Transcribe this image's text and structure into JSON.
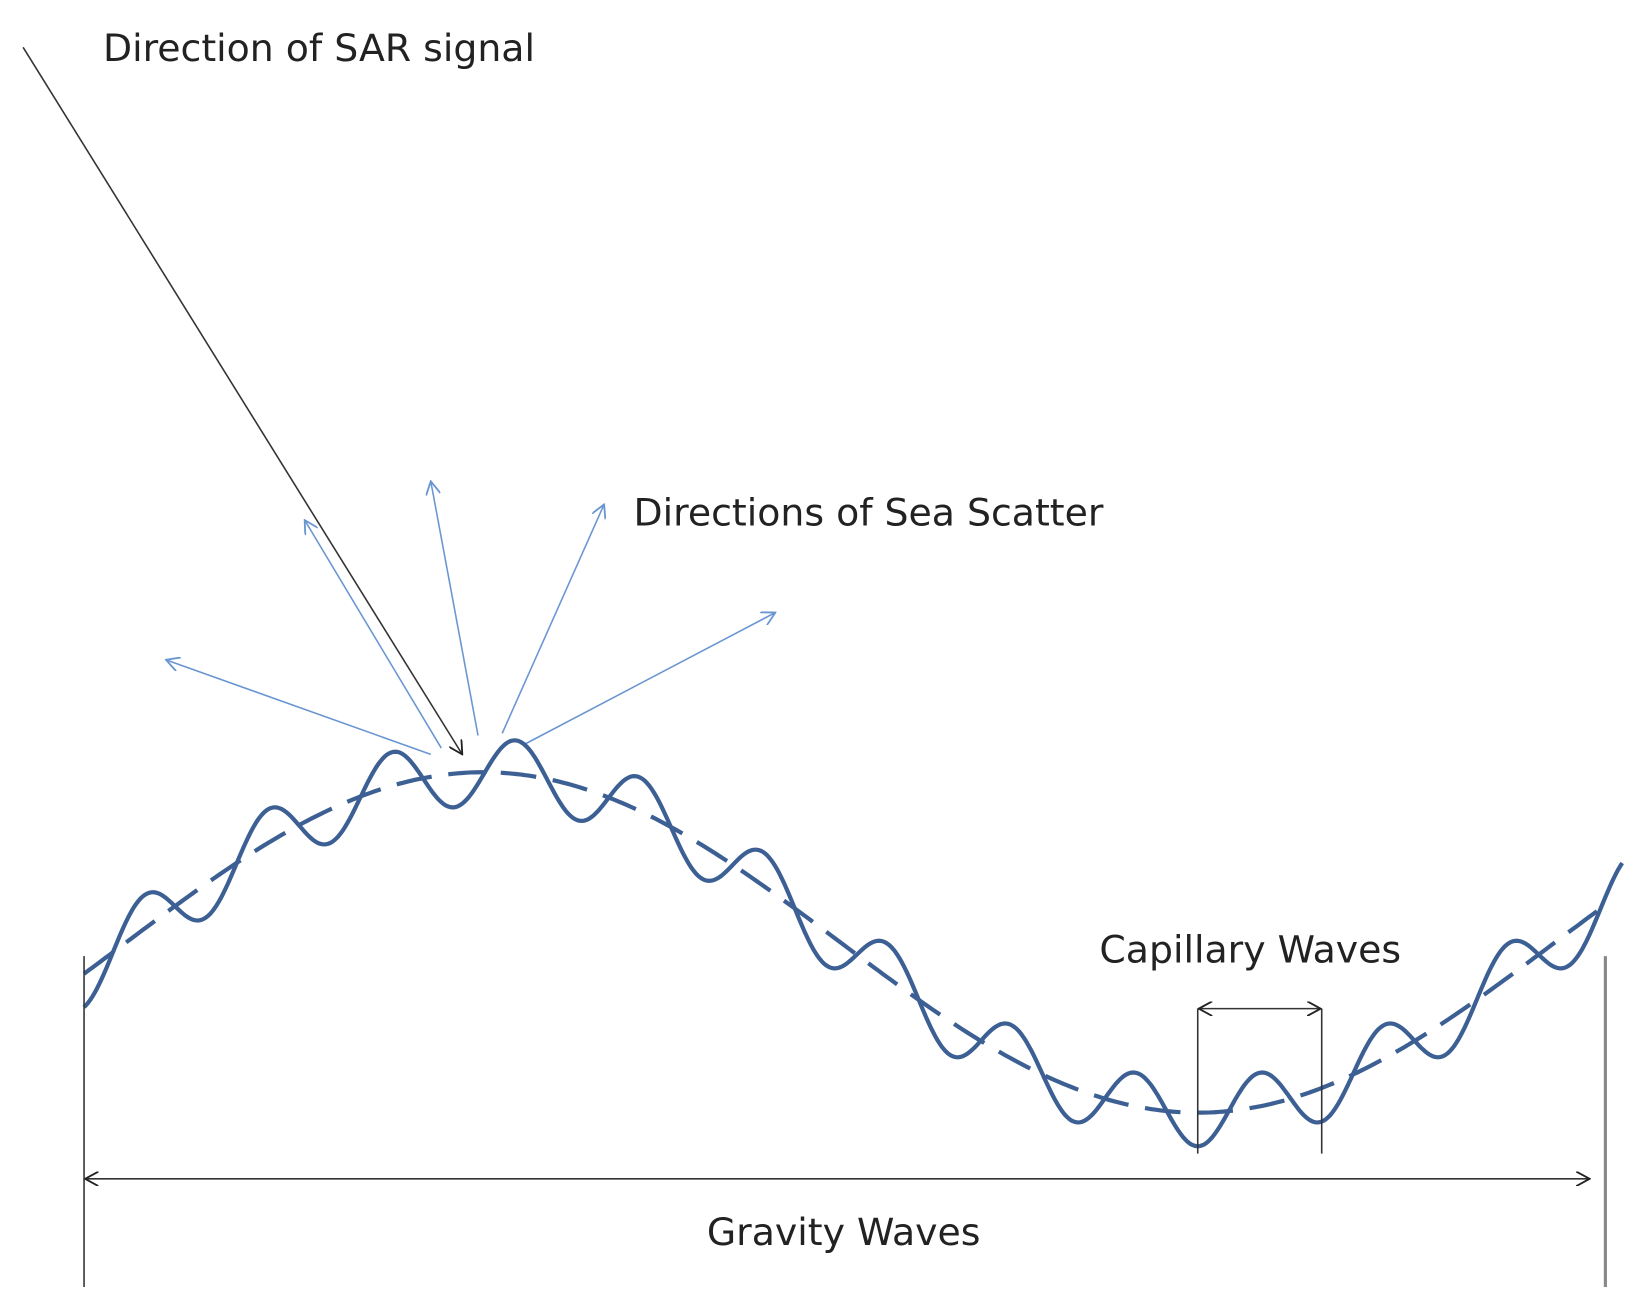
{
  "labels": {
    "sar_signal": "Direction of SAR signal",
    "sea_scatter": "Directions of Sea Scatter",
    "capillary_waves": "Capillary Waves",
    "gravity_waves": "Gravity Waves"
  }
}
